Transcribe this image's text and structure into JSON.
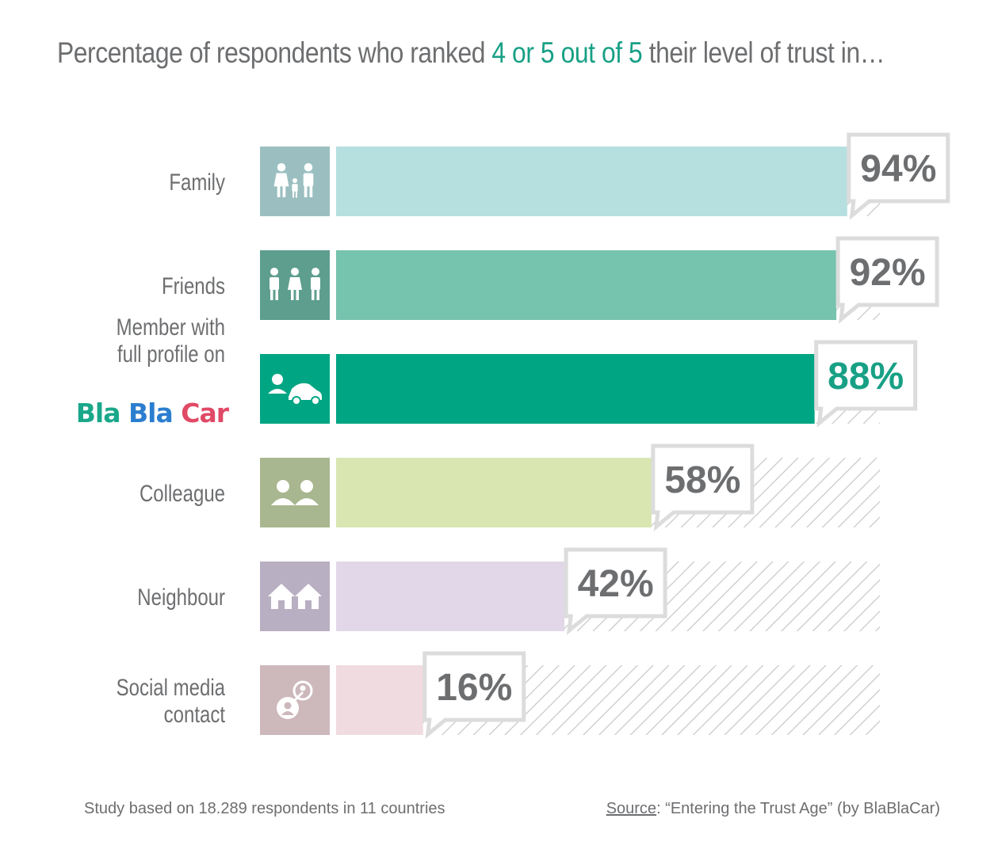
{
  "title": {
    "before": "Percentage of respondents who ranked ",
    "highlight": "4 or 5 out of 5",
    "after": " their level of trust in…"
  },
  "colors": {
    "title_highlight": "#18a085",
    "text": "#6d6e70",
    "hatch": "#c8c8c8"
  },
  "chart_data": {
    "type": "bar",
    "orientation": "horizontal",
    "categories": [
      "Family",
      "Friends",
      "Member with full profile on BlaBlaCar",
      "Colleague",
      "Neighbour",
      "Social media contact"
    ],
    "label_lines": [
      [
        "Family"
      ],
      [
        "Friends"
      ],
      [
        "Member with",
        "full profile on"
      ],
      [
        "Colleague"
      ],
      [
        "Neighbour"
      ],
      [
        "Social media",
        "contact"
      ]
    ],
    "values": [
      94,
      92,
      88,
      58,
      42,
      16
    ],
    "value_labels": [
      "94%",
      "92%",
      "88%",
      "58%",
      "42%",
      "16%"
    ],
    "xlim": [
      0,
      100
    ],
    "bar_colors": [
      "#b6dfe0",
      "#76c3ae",
      "#00a583",
      "#d9e6b2",
      "#e2d7e8",
      "#f0dbe0"
    ],
    "icon_colors": [
      "#9bbfc0",
      "#5e9e8e",
      "#00a583",
      "#a8b78f",
      "#b8afc2",
      "#cdb8bc"
    ],
    "icons": [
      "family-icon",
      "friends-icon",
      "car-sharing-icon",
      "colleague-icon",
      "neighbour-icon",
      "social-media-icon"
    ],
    "value_colors": [
      "#6d6e70",
      "#6d6e70",
      "#18a085",
      "#6d6e70",
      "#6d6e70",
      "#6d6e70"
    ],
    "grid": false,
    "legend": "none"
  },
  "brand": {
    "word1": "Bla",
    "word2": "Bla",
    "word3": "Car"
  },
  "footer": {
    "note": "Study based on 18.289 respondents in 11 countries",
    "source_label": "Source",
    "source_text": ": “Entering the Trust Age” (by BlaBlaCar)"
  }
}
